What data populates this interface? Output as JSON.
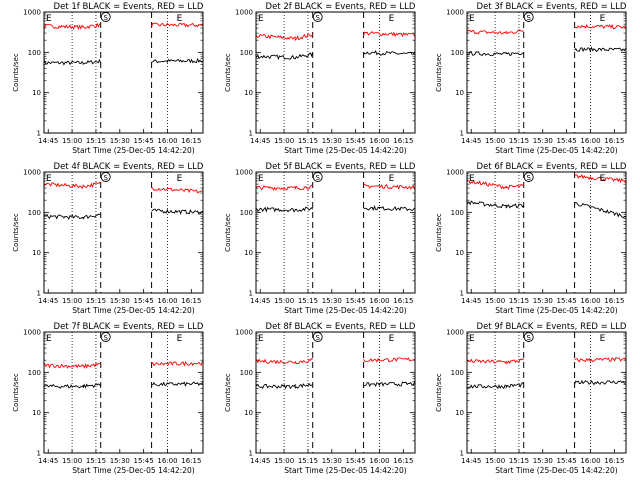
{
  "figure": {
    "ylabel": "Counts/sec",
    "xlabel": "Start Time (25-Dec-05 14:42:20)",
    "x_ticks": [
      "14:45",
      "15:00",
      "15:15",
      "15:30",
      "15:45",
      "16:00",
      "16:15"
    ],
    "y_ticks": [
      "1",
      "10",
      "100",
      "1000"
    ],
    "marker_start": "E",
    "marker_saa": "S",
    "marker_end": "E"
  },
  "chart_data": [
    {
      "type": "line",
      "title": "Det 1f BLACK = Events, RED = LLD",
      "xlim": [
        "14:42:20",
        "16:22:20"
      ],
      "ylim": [
        1,
        1000
      ],
      "y_scale": "log",
      "x": [
        "14:42",
        "15:07",
        "15:18",
        "15:31",
        "15:42",
        "15:50",
        "16:22"
      ],
      "series": [
        {
          "name": "BLACK = Events",
          "color": "#000000",
          "values": [
            55,
            55,
            60,
            null,
            null,
            60,
            62
          ]
        },
        {
          "name": "RED = LLD",
          "color": "#ff0000",
          "values": [
            450,
            420,
            480,
            null,
            null,
            480,
            470
          ]
        }
      ]
    },
    {
      "type": "line",
      "title": "Det 2f BLACK = Events, RED = LLD",
      "xlim": [
        "14:42:20",
        "16:22:20"
      ],
      "ylim": [
        1,
        1000
      ],
      "y_scale": "log",
      "x": [
        "14:42",
        "15:07",
        "15:18",
        "15:31",
        "15:42",
        "15:50",
        "16:22"
      ],
      "series": [
        {
          "name": "BLACK = Events",
          "color": "#000000",
          "values": [
            80,
            75,
            90,
            null,
            null,
            100,
            90
          ]
        },
        {
          "name": "RED = LLD",
          "color": "#ff0000",
          "values": [
            260,
            220,
            280,
            null,
            null,
            300,
            270
          ]
        }
      ]
    },
    {
      "type": "line",
      "title": "Det 3f BLACK = Events, RED = LLD",
      "xlim": [
        "14:42:20",
        "16:22:20"
      ],
      "ylim": [
        1,
        1000
      ],
      "y_scale": "log",
      "x": [
        "14:42",
        "15:07",
        "15:18",
        "15:31",
        "15:42",
        "15:50",
        "16:22"
      ],
      "series": [
        {
          "name": "BLACK = Events",
          "color": "#000000",
          "values": [
            95,
            90,
            100,
            null,
            null,
            120,
            115
          ]
        },
        {
          "name": "RED = LLD",
          "color": "#ff0000",
          "values": [
            330,
            300,
            350,
            null,
            null,
            450,
            420
          ]
        }
      ]
    },
    {
      "type": "line",
      "title": "Det 4f BLACK = Events, RED = LLD",
      "xlim": [
        "14:42:20",
        "16:22:20"
      ],
      "ylim": [
        1,
        1000
      ],
      "y_scale": "log",
      "x": [
        "14:42",
        "15:07",
        "15:18",
        "15:31",
        "15:42",
        "15:50",
        "16:22"
      ],
      "series": [
        {
          "name": "BLACK = Events",
          "color": "#000000",
          "values": [
            80,
            75,
            90,
            null,
            null,
            110,
            100
          ]
        },
        {
          "name": "RED = LLD",
          "color": "#ff0000",
          "values": [
            500,
            440,
            520,
            null,
            null,
            400,
            320
          ]
        }
      ]
    },
    {
      "type": "line",
      "title": "Det 5f BLACK = Events, RED = LLD",
      "xlim": [
        "14:42:20",
        "16:22:20"
      ],
      "ylim": [
        1,
        1000
      ],
      "y_scale": "log",
      "x": [
        "14:42",
        "15:07",
        "15:18",
        "15:31",
        "15:42",
        "15:50",
        "16:22"
      ],
      "series": [
        {
          "name": "BLACK = Events",
          "color": "#000000",
          "values": [
            120,
            115,
            125,
            null,
            null,
            130,
            120
          ]
        },
        {
          "name": "RED = LLD",
          "color": "#ff0000",
          "values": [
            410,
            400,
            430,
            null,
            null,
            450,
            420
          ]
        }
      ]
    },
    {
      "type": "line",
      "title": "Det 6f BLACK = Events, RED = LLD",
      "xlim": [
        "14:42:20",
        "16:22:20"
      ],
      "ylim": [
        1,
        1000
      ],
      "y_scale": "log",
      "x": [
        "14:42",
        "15:07",
        "15:18",
        "15:31",
        "15:42",
        "15:50",
        "16:22"
      ],
      "series": [
        {
          "name": "BLACK = Events",
          "color": "#000000",
          "values": [
            180,
            140,
            150,
            null,
            null,
            170,
            80
          ]
        },
        {
          "name": "RED = LLD",
          "color": "#ff0000",
          "values": [
            600,
            420,
            450,
            null,
            null,
            800,
            600
          ]
        }
      ]
    },
    {
      "type": "line",
      "title": "Det 7f BLACK = Events, RED = LLD",
      "xlim": [
        "14:42:20",
        "16:22:20"
      ],
      "ylim": [
        1,
        1000
      ],
      "y_scale": "log",
      "x": [
        "14:42",
        "15:07",
        "15:18",
        "15:31",
        "15:42",
        "15:50",
        "16:22"
      ],
      "series": [
        {
          "name": "BLACK = Events",
          "color": "#000000",
          "values": [
            45,
            45,
            50,
            null,
            null,
            50,
            52
          ]
        },
        {
          "name": "RED = LLD",
          "color": "#ff0000",
          "values": [
            150,
            140,
            160,
            null,
            null,
            160,
            170
          ]
        }
      ]
    },
    {
      "type": "line",
      "title": "Det 8f BLACK = Events, RED = LLD",
      "xlim": [
        "14:42:20",
        "16:22:20"
      ],
      "ylim": [
        1,
        1000
      ],
      "y_scale": "log",
      "x": [
        "14:42",
        "15:07",
        "15:18",
        "15:31",
        "15:42",
        "15:50",
        "16:22"
      ],
      "series": [
        {
          "name": "BLACK = Events",
          "color": "#000000",
          "values": [
            45,
            45,
            50,
            null,
            null,
            50,
            52
          ]
        },
        {
          "name": "RED = LLD",
          "color": "#ff0000",
          "values": [
            190,
            180,
            200,
            null,
            null,
            200,
            210
          ]
        }
      ]
    },
    {
      "type": "line",
      "title": "Det 9f BLACK = Events, RED = LLD",
      "xlim": [
        "14:42:20",
        "16:22:20"
      ],
      "ylim": [
        1,
        1000
      ],
      "y_scale": "log",
      "x": [
        "14:42",
        "15:07",
        "15:18",
        "15:31",
        "15:42",
        "15:50",
        "16:22"
      ],
      "series": [
        {
          "name": "BLACK = Events",
          "color": "#000000",
          "values": [
            45,
            45,
            50,
            null,
            null,
            55,
            58
          ]
        },
        {
          "name": "RED = LLD",
          "color": "#ff0000",
          "values": [
            190,
            180,
            200,
            null,
            null,
            200,
            210
          ]
        }
      ]
    }
  ]
}
